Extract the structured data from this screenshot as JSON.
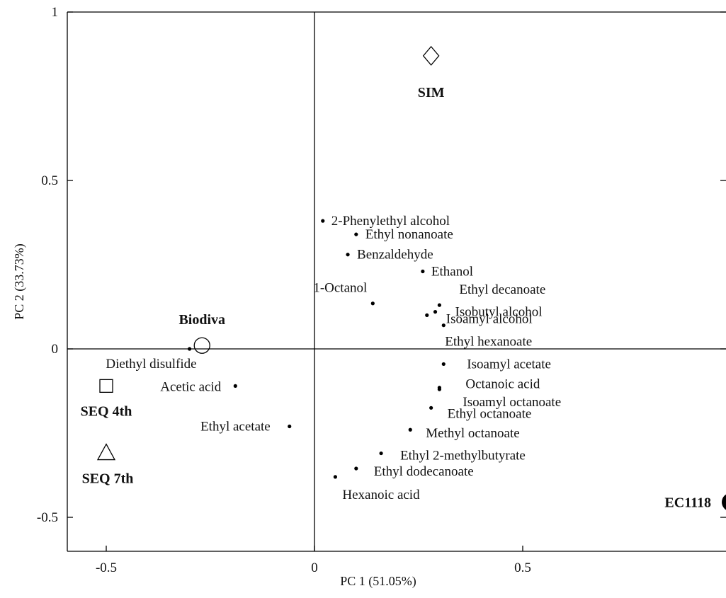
{
  "chart_data": {
    "type": "scatter",
    "title": "",
    "xlabel": "PC 1 (51.05%)",
    "ylabel": "PC 2 (33.73%)",
    "xlim": [
      -0.6,
      1.0
    ],
    "ylim": [
      -0.6,
      1.0
    ],
    "x_ticks": [
      {
        "value": -0.5,
        "label": "-0.5"
      },
      {
        "value": 0,
        "label": "0"
      },
      {
        "value": 0.5,
        "label": "0.5"
      }
    ],
    "y_ticks": [
      {
        "value": 1,
        "label": "1"
      },
      {
        "value": 0.5,
        "label": "0.5"
      },
      {
        "value": 0,
        "label": "0"
      },
      {
        "value": -0.5,
        "label": "-0.5"
      }
    ],
    "grid": false,
    "reference_lines": {
      "x": 0,
      "y": 0
    },
    "variables": [
      {
        "label": "2-Phenylethyl alcohol",
        "x": 0.02,
        "y": 0.38
      },
      {
        "label": "Ethyl nonanoate",
        "x": 0.1,
        "y": 0.34
      },
      {
        "label": "Benzaldehyde",
        "x": 0.08,
        "y": 0.28
      },
      {
        "label": "Ethanol",
        "x": 0.26,
        "y": 0.23
      },
      {
        "label": "1-Octanol",
        "x": 0.14,
        "y": 0.135
      },
      {
        "label": "Ethyl decanoate",
        "x": 0.3,
        "y": 0.13
      },
      {
        "label": "Isobutyl alcohol",
        "x": 0.29,
        "y": 0.11
      },
      {
        "label": "Isoamyl alcohol",
        "x": 0.27,
        "y": 0.1
      },
      {
        "label": "Ethyl hexanoate",
        "x": 0.31,
        "y": 0.07
      },
      {
        "label": "Diethyl disulfide",
        "x": -0.3,
        "y": 0.0
      },
      {
        "label": "Isoamyl acetate",
        "x": 0.31,
        "y": -0.045
      },
      {
        "label": "Octanoic acid",
        "x": 0.3,
        "y": -0.115
      },
      {
        "label": "Isoamyl octanoate",
        "x": 0.3,
        "y": -0.12
      },
      {
        "label": "Acetic acid",
        "x": -0.19,
        "y": -0.11
      },
      {
        "label": "Ethyl octanoate",
        "x": 0.28,
        "y": -0.175
      },
      {
        "label": "Ethyl acetate",
        "x": -0.06,
        "y": -0.23
      },
      {
        "label": "Methyl octanoate",
        "x": 0.23,
        "y": -0.24
      },
      {
        "label": "Ethyl 2-methylbutyrate",
        "x": 0.16,
        "y": -0.31
      },
      {
        "label": "Ethyl dodecanoate",
        "x": 0.1,
        "y": -0.355
      },
      {
        "label": "Hexanoic acid",
        "x": 0.05,
        "y": -0.38
      }
    ],
    "samples": [
      {
        "label": "SIM",
        "marker": "diamond",
        "x": 0.28,
        "y": 0.87
      },
      {
        "label": "Biodiva",
        "marker": "circle",
        "x": -0.27,
        "y": 0.01
      },
      {
        "label": "SEQ 4th",
        "marker": "square",
        "x": -0.5,
        "y": -0.11
      },
      {
        "label": "SEQ 7th",
        "marker": "triangle",
        "x": -0.5,
        "y": -0.31
      },
      {
        "label": "EC1118",
        "marker": "filled-circle",
        "x": 1.0,
        "y": -0.455
      }
    ]
  }
}
